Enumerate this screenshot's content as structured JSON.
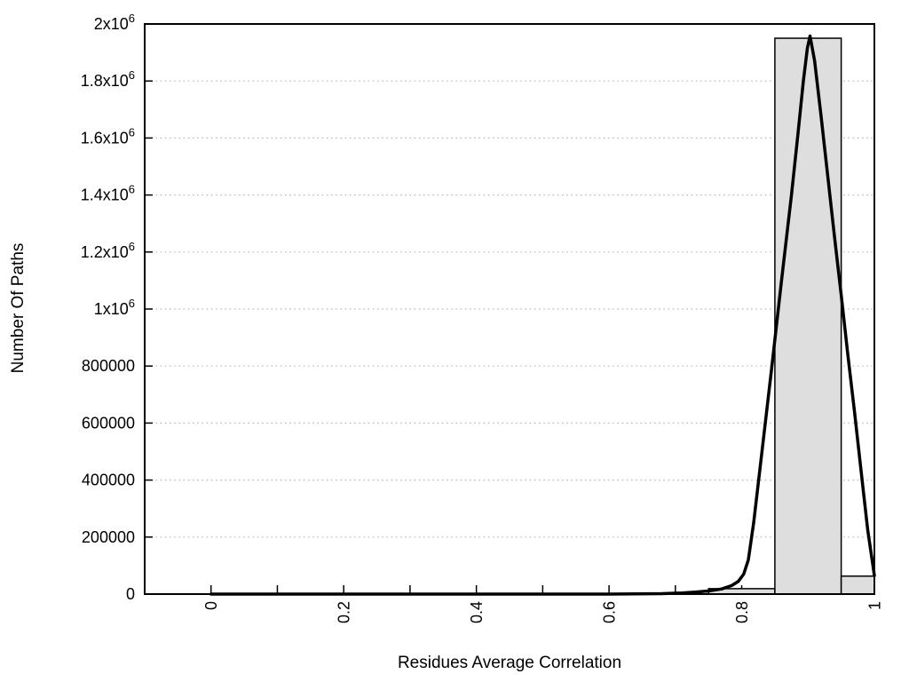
{
  "chart_data": {
    "type": "bar",
    "subtype": "histogram-with-fit-curve",
    "title": "",
    "xlabel": "Residues Average Correlation",
    "ylabel": "Number Of Paths",
    "xlim": [
      -0.1,
      1.0
    ],
    "ylim": [
      0,
      2000000
    ],
    "grid": "horizontal dotted lines at every y tick",
    "legend": "none",
    "x_axis": {
      "ticks": [
        {
          "v": 0.0,
          "label": "0"
        },
        {
          "v": 0.1
        },
        {
          "v": 0.2,
          "label": "0.2"
        },
        {
          "v": 0.3
        },
        {
          "v": 0.4,
          "label": "0.4"
        },
        {
          "v": 0.5
        },
        {
          "v": 0.6,
          "label": "0.6"
        },
        {
          "v": 0.7
        },
        {
          "v": 0.8,
          "label": "0.8"
        },
        {
          "v": 0.9
        },
        {
          "v": 1.0,
          "label": "1"
        }
      ],
      "label_rotation_deg": -90
    },
    "y_axis": {
      "ticks": [
        {
          "v": 0,
          "label": "0"
        },
        {
          "v": 200000,
          "label": "200000"
        },
        {
          "v": 400000,
          "label": "400000"
        },
        {
          "v": 600000,
          "label": "600000"
        },
        {
          "v": 800000,
          "label": "800000"
        },
        {
          "v": 1000000,
          "label": "1x10^6"
        },
        {
          "v": 1200000,
          "label": "1.2x10^6"
        },
        {
          "v": 1400000,
          "label": "1.4x10^6"
        },
        {
          "v": 1600000,
          "label": "1.6x10^6"
        },
        {
          "v": 1800000,
          "label": "1.8x10^6"
        },
        {
          "v": 2000000,
          "label": "2x10^6"
        }
      ]
    },
    "bars": [
      {
        "x0": 0.75,
        "x1": 0.85,
        "count": 19000
      },
      {
        "x0": 0.85,
        "x1": 0.95,
        "count": 1950000
      },
      {
        "x0": 0.95,
        "x1": 1.0,
        "count": 63000
      }
    ],
    "curve": {
      "name": "fit-curve",
      "peak": {
        "x": 0.9,
        "y": 1958000
      },
      "points": [
        [
          0.0,
          0
        ],
        [
          0.1,
          0
        ],
        [
          0.2,
          0
        ],
        [
          0.3,
          0
        ],
        [
          0.4,
          0
        ],
        [
          0.5,
          0
        ],
        [
          0.6,
          0
        ],
        [
          0.64,
          500
        ],
        [
          0.68,
          1500
        ],
        [
          0.71,
          4000
        ],
        [
          0.73,
          7000
        ],
        [
          0.75,
          11000
        ],
        [
          0.77,
          18000
        ],
        [
          0.785,
          30000
        ],
        [
          0.795,
          45000
        ],
        [
          0.803,
          70000
        ],
        [
          0.81,
          120000
        ],
        [
          0.818,
          250000
        ],
        [
          0.83,
          490000
        ],
        [
          0.845,
          790000
        ],
        [
          0.86,
          1100000
        ],
        [
          0.875,
          1400000
        ],
        [
          0.885,
          1620000
        ],
        [
          0.893,
          1800000
        ],
        [
          0.899,
          1915000
        ],
        [
          0.903,
          1958000
        ],
        [
          0.91,
          1870000
        ],
        [
          0.92,
          1670000
        ],
        [
          0.93,
          1460000
        ],
        [
          0.94,
          1250000
        ],
        [
          0.95,
          1050000
        ],
        [
          0.96,
          840000
        ],
        [
          0.97,
          640000
        ],
        [
          0.98,
          430000
        ],
        [
          0.99,
          225000
        ],
        [
          1.0,
          65000
        ]
      ]
    },
    "colors": {
      "bar_fill": "#dedede",
      "bar_border": "#000000",
      "curve": "#000000",
      "grid": "#b9b9b9",
      "text": "#000000",
      "background": "#ffffff"
    }
  }
}
